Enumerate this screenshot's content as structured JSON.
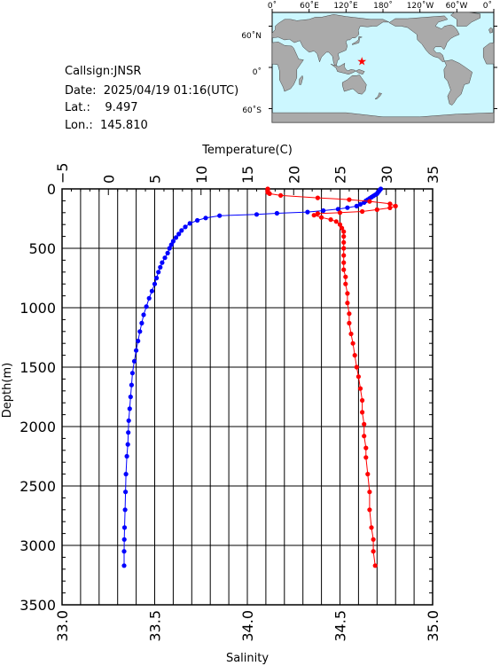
{
  "header": {
    "callsign_line": "Callsign:JNSR",
    "date_line": "Date:  2025/04/19 01:16(UTC)",
    "lat_line": "Lat.:    9.497",
    "lon_line": "Lon.:  145.810"
  },
  "map": {
    "top_labels": [
      "0˚",
      "60˚E",
      "120˚E",
      "180˚",
      "120˚W",
      "60˚W",
      "0˚"
    ],
    "lat_labels": [
      "60˚N",
      "0˚",
      "60˚S"
    ],
    "station": {
      "lat": 9.497,
      "lon": 145.81
    },
    "ocean_color": "#ccf7ff",
    "land_color": "#aaaaaa",
    "marker_color": "#ff0000"
  },
  "chart_data": {
    "type": "line",
    "title": "",
    "ylabel": "Depth(m)",
    "ylim": [
      0,
      3500
    ],
    "y_inverted": true,
    "y_ticks": [
      "0",
      "500",
      "1000",
      "1500",
      "2000",
      "2500",
      "3000",
      "3500"
    ],
    "top_axis": {
      "label": "Temperature(C)",
      "range": [
        -5,
        35
      ],
      "ticks": [
        "−5",
        "0",
        "5",
        "10",
        "15",
        "20",
        "25",
        "30",
        "35"
      ]
    },
    "bottom_axis": {
      "label": "Salinity",
      "range": [
        33.0,
        35.0
      ],
      "ticks": [
        "33.0",
        "33.5",
        "34.0",
        "34.5",
        "35.0"
      ]
    },
    "grid": true,
    "series": [
      {
        "name": "Temperature",
        "axis": "top",
        "color": "#0000ff",
        "points": [
          [
            29.4,
            0
          ],
          [
            29.3,
            10
          ],
          [
            29.2,
            20
          ],
          [
            29.1,
            30
          ],
          [
            29.0,
            40
          ],
          [
            28.8,
            50
          ],
          [
            28.6,
            60
          ],
          [
            28.4,
            70
          ],
          [
            28.2,
            80
          ],
          [
            28.0,
            90
          ],
          [
            27.8,
            100
          ],
          [
            27.6,
            115
          ],
          [
            27.2,
            130
          ],
          [
            26.8,
            145
          ],
          [
            25.8,
            158
          ],
          [
            24.8,
            170
          ],
          [
            23.2,
            183
          ],
          [
            21.5,
            195
          ],
          [
            18.2,
            205
          ],
          [
            16.0,
            215
          ],
          [
            12.0,
            225
          ],
          [
            10.5,
            245
          ],
          [
            9.6,
            265
          ],
          [
            8.8,
            290
          ],
          [
            8.3,
            320
          ],
          [
            7.9,
            350
          ],
          [
            7.6,
            380
          ],
          [
            7.3,
            410
          ],
          [
            7.0,
            440
          ],
          [
            6.8,
            470
          ],
          [
            6.6,
            500
          ],
          [
            6.4,
            540
          ],
          [
            6.1,
            580
          ],
          [
            5.8,
            620
          ],
          [
            5.6,
            660
          ],
          [
            5.4,
            700
          ],
          [
            5.2,
            750
          ],
          [
            5.0,
            800
          ],
          [
            4.7,
            860
          ],
          [
            4.4,
            920
          ],
          [
            4.1,
            990
          ],
          [
            3.8,
            1060
          ],
          [
            3.6,
            1130
          ],
          [
            3.4,
            1200
          ],
          [
            3.2,
            1280
          ],
          [
            3.0,
            1360
          ],
          [
            2.8,
            1450
          ],
          [
            2.6,
            1550
          ],
          [
            2.5,
            1650
          ],
          [
            2.4,
            1750
          ],
          [
            2.3,
            1850
          ],
          [
            2.2,
            1950
          ],
          [
            2.15,
            2050
          ],
          [
            2.1,
            2150
          ],
          [
            2.0,
            2250
          ],
          [
            1.9,
            2400
          ],
          [
            1.85,
            2550
          ],
          [
            1.8,
            2700
          ],
          [
            1.75,
            2850
          ],
          [
            1.72,
            2950
          ],
          [
            1.7,
            3050
          ],
          [
            1.7,
            3170
          ]
        ]
      },
      {
        "name": "Salinity",
        "axis": "bottom",
        "color": "#ff0000",
        "points": [
          [
            34.11,
            0
          ],
          [
            34.11,
            10
          ],
          [
            34.11,
            20
          ],
          [
            34.11,
            30
          ],
          [
            34.12,
            40
          ],
          [
            34.18,
            55
          ],
          [
            34.38,
            75
          ],
          [
            34.55,
            90
          ],
          [
            34.66,
            105
          ],
          [
            34.77,
            125
          ],
          [
            34.8,
            145
          ],
          [
            34.77,
            160
          ],
          [
            34.7,
            175
          ],
          [
            34.62,
            190
          ],
          [
            34.5,
            200
          ],
          [
            34.38,
            208
          ],
          [
            34.36,
            222
          ],
          [
            34.4,
            240
          ],
          [
            34.45,
            258
          ],
          [
            34.48,
            275
          ],
          [
            34.5,
            300
          ],
          [
            34.51,
            330
          ],
          [
            34.52,
            360
          ],
          [
            34.52,
            400
          ],
          [
            34.52,
            450
          ],
          [
            34.52,
            500
          ],
          [
            34.52,
            560
          ],
          [
            34.52,
            620
          ],
          [
            34.52,
            680
          ],
          [
            34.53,
            740
          ],
          [
            34.53,
            800
          ],
          [
            34.54,
            880
          ],
          [
            34.54,
            960
          ],
          [
            34.55,
            1050
          ],
          [
            34.55,
            1130
          ],
          [
            34.56,
            1220
          ],
          [
            34.57,
            1300
          ],
          [
            34.58,
            1400
          ],
          [
            34.59,
            1500
          ],
          [
            34.6,
            1580
          ],
          [
            34.61,
            1680
          ],
          [
            34.62,
            1780
          ],
          [
            34.62,
            1880
          ],
          [
            34.63,
            1980
          ],
          [
            34.63,
            2080
          ],
          [
            34.64,
            2180
          ],
          [
            34.64,
            2260
          ],
          [
            34.65,
            2400
          ],
          [
            34.66,
            2550
          ],
          [
            34.66,
            2700
          ],
          [
            34.67,
            2850
          ],
          [
            34.68,
            2950
          ],
          [
            34.68,
            3050
          ],
          [
            34.69,
            3170
          ]
        ]
      }
    ]
  }
}
